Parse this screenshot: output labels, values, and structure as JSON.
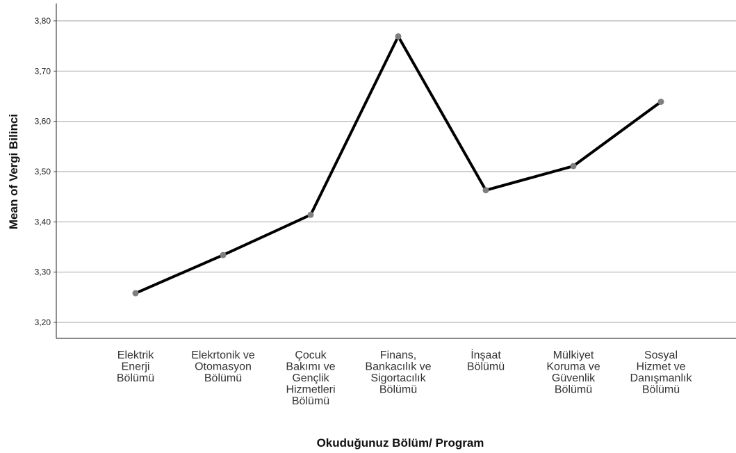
{
  "chart_data": {
    "type": "line",
    "xlabel": "Okuduğunuz Bölüm/ Program",
    "ylabel": "Mean of Vergi Bilinci",
    "ylim": [
      3.16,
      3.85
    ],
    "yticks": [
      "3,20",
      "3,30",
      "3,40",
      "3,50",
      "3,60",
      "3,70",
      "3,80"
    ],
    "ytick_values": [
      3.2,
      3.3,
      3.4,
      3.5,
      3.6,
      3.7,
      3.8
    ],
    "grid": true,
    "categories": [
      [
        "Elektrik",
        "Enerji",
        "Bölümü"
      ],
      [
        "Elekrtonik ve",
        "Otomasyon",
        "Bölümü"
      ],
      [
        "Çocuk",
        "Bakımı ve",
        "Gençlik",
        "Hizmetleri",
        "Bölümü"
      ],
      [
        "Finans,",
        "Bankacılık ve",
        "Sigortacılık",
        "Bölümü"
      ],
      [
        "İnşaat",
        "Bölümü"
      ],
      [
        "Mülkiyet",
        "Koruma ve",
        "Güvenlik",
        "Bölümü"
      ],
      [
        "Sosyal",
        "Hizmet ve",
        "Danışmanlık",
        "Bölümü"
      ]
    ],
    "series": [
      {
        "values": [
          3.258,
          3.334,
          3.414,
          3.769,
          3.463,
          3.511,
          3.639
        ]
      }
    ],
    "colors": {
      "line": "#000000",
      "marker": "#7f7f7f",
      "grid": "#b3b3b3",
      "axis": "#444444"
    }
  }
}
